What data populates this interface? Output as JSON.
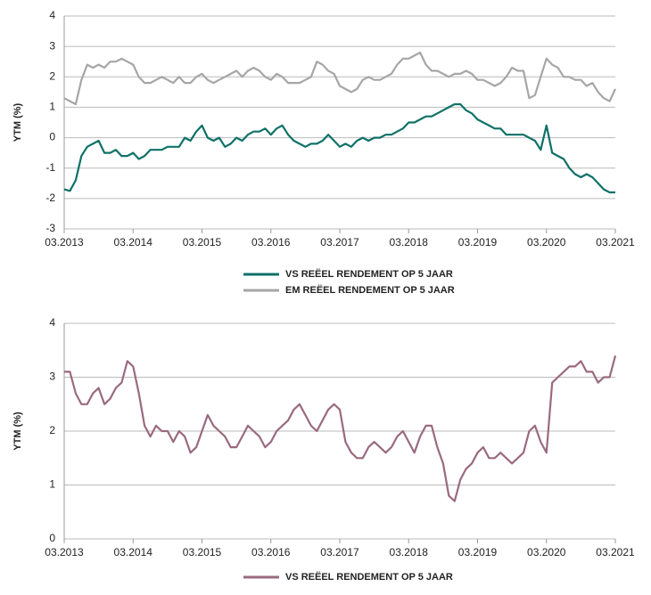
{
  "chart_data": [
    {
      "type": "line",
      "ylabel": "YTM (%)",
      "categories": [
        "03.2013",
        "04.2013",
        "05.2013",
        "06.2013",
        "07.2013",
        "08.2013",
        "09.2013",
        "10.2013",
        "11.2013",
        "12.2013",
        "01.2014",
        "02.2014",
        "03.2014",
        "04.2014",
        "05.2014",
        "06.2014",
        "07.2014",
        "08.2014",
        "09.2014",
        "10.2014",
        "11.2014",
        "12.2014",
        "01.2015",
        "02.2015",
        "03.2015",
        "04.2015",
        "05.2015",
        "06.2015",
        "07.2015",
        "08.2015",
        "09.2015",
        "10.2015",
        "11.2015",
        "12.2015",
        "01.2016",
        "02.2016",
        "03.2016",
        "04.2016",
        "05.2016",
        "06.2016",
        "07.2016",
        "08.2016",
        "09.2016",
        "10.2016",
        "11.2016",
        "12.2016",
        "01.2017",
        "02.2017",
        "03.2017",
        "04.2017",
        "05.2017",
        "06.2017",
        "07.2017",
        "08.2017",
        "09.2017",
        "10.2017",
        "11.2017",
        "12.2017",
        "01.2018",
        "02.2018",
        "03.2018",
        "04.2018",
        "05.2018",
        "06.2018",
        "07.2018",
        "08.2018",
        "09.2018",
        "10.2018",
        "11.2018",
        "12.2018",
        "01.2019",
        "02.2019",
        "03.2019",
        "04.2019",
        "05.2019",
        "06.2019",
        "07.2019",
        "08.2019",
        "09.2019",
        "10.2019",
        "11.2019",
        "12.2019",
        "01.2020",
        "02.2020",
        "03.2020",
        "04.2020",
        "05.2020",
        "06.2020",
        "07.2020",
        "08.2020",
        "09.2020",
        "10.2020",
        "11.2020",
        "12.2020",
        "01.2021",
        "02.2021",
        "03.2021"
      ],
      "series": [
        {
          "name": "VS REËEL RENDEMENT OP 5 JAAR",
          "color": "#0e7168",
          "values": [
            -1.7,
            -1.75,
            -1.4,
            -0.6,
            -0.3,
            -0.2,
            -0.1,
            -0.5,
            -0.5,
            -0.4,
            -0.6,
            -0.6,
            -0.5,
            -0.7,
            -0.6,
            -0.4,
            -0.4,
            -0.4,
            -0.3,
            -0.3,
            -0.3,
            0.0,
            -0.1,
            0.2,
            0.4,
            0.0,
            -0.1,
            0.0,
            -0.3,
            -0.2,
            0.0,
            -0.1,
            0.1,
            0.2,
            0.2,
            0.3,
            0.1,
            0.3,
            0.4,
            0.1,
            -0.1,
            -0.2,
            -0.3,
            -0.2,
            -0.2,
            -0.1,
            0.1,
            -0.1,
            -0.3,
            -0.2,
            -0.3,
            -0.1,
            0.0,
            -0.1,
            0.0,
            0.0,
            0.1,
            0.1,
            0.2,
            0.3,
            0.5,
            0.5,
            0.6,
            0.7,
            0.7,
            0.8,
            0.9,
            1.0,
            1.1,
            1.1,
            0.9,
            0.8,
            0.6,
            0.5,
            0.4,
            0.3,
            0.3,
            0.1,
            0.1,
            0.1,
            0.1,
            0.0,
            -0.1,
            -0.4,
            0.4,
            -0.5,
            -0.6,
            -0.7,
            -1.0,
            -1.2,
            -1.3,
            -1.2,
            -1.3,
            -1.5,
            -1.7,
            -1.8,
            -1.8
          ]
        },
        {
          "name": "EM REËEL RENDEMENT OP 5 JAAR",
          "color": "#a6a6a6",
          "values": [
            1.3,
            1.2,
            1.1,
            1.9,
            2.4,
            2.3,
            2.4,
            2.3,
            2.5,
            2.5,
            2.6,
            2.5,
            2.4,
            2.0,
            1.8,
            1.8,
            1.9,
            2.0,
            1.9,
            1.8,
            2.0,
            1.8,
            1.8,
            2.0,
            2.1,
            1.9,
            1.8,
            1.9,
            2.0,
            2.1,
            2.2,
            2.0,
            2.2,
            2.3,
            2.2,
            2.0,
            1.9,
            2.1,
            2.0,
            1.8,
            1.8,
            1.8,
            1.9,
            2.0,
            2.5,
            2.4,
            2.2,
            2.1,
            1.7,
            1.6,
            1.5,
            1.6,
            1.9,
            2.0,
            1.9,
            1.9,
            2.0,
            2.1,
            2.4,
            2.6,
            2.6,
            2.7,
            2.8,
            2.4,
            2.2,
            2.2,
            2.1,
            2.0,
            2.1,
            2.1,
            2.2,
            2.1,
            1.9,
            1.9,
            1.8,
            1.7,
            1.8,
            2.0,
            2.3,
            2.2,
            2.2,
            1.3,
            1.4,
            2.0,
            2.6,
            2.4,
            2.3,
            2.0,
            2.0,
            1.9,
            1.9,
            1.7,
            1.8,
            1.5,
            1.3,
            1.2,
            1.6
          ]
        }
      ],
      "ylim": [
        -3,
        4
      ],
      "yticks": [
        -3,
        -2,
        -1,
        0,
        1,
        2,
        3,
        4
      ],
      "grid": true
    },
    {
      "type": "line",
      "ylabel": "YTM (%)",
      "categories": [
        "03.2013",
        "04.2013",
        "05.2013",
        "06.2013",
        "07.2013",
        "08.2013",
        "09.2013",
        "10.2013",
        "11.2013",
        "12.2013",
        "01.2014",
        "02.2014",
        "03.2014",
        "04.2014",
        "05.2014",
        "06.2014",
        "07.2014",
        "08.2014",
        "09.2014",
        "10.2014",
        "11.2014",
        "12.2014",
        "01.2015",
        "02.2015",
        "03.2015",
        "04.2015",
        "05.2015",
        "06.2015",
        "07.2015",
        "08.2015",
        "09.2015",
        "10.2015",
        "11.2015",
        "12.2015",
        "01.2016",
        "02.2016",
        "03.2016",
        "04.2016",
        "05.2016",
        "06.2016",
        "07.2016",
        "08.2016",
        "09.2016",
        "10.2016",
        "11.2016",
        "12.2016",
        "01.2017",
        "02.2017",
        "03.2017",
        "04.2017",
        "05.2017",
        "06.2017",
        "07.2017",
        "08.2017",
        "09.2017",
        "10.2017",
        "11.2017",
        "12.2017",
        "01.2018",
        "02.2018",
        "03.2018",
        "04.2018",
        "05.2018",
        "06.2018",
        "07.2018",
        "08.2018",
        "09.2018",
        "10.2018",
        "11.2018",
        "12.2018",
        "01.2019",
        "02.2019",
        "03.2019",
        "04.2019",
        "05.2019",
        "06.2019",
        "07.2019",
        "08.2019",
        "09.2019",
        "10.2019",
        "11.2019",
        "12.2019",
        "01.2020",
        "02.2020",
        "03.2020",
        "04.2020",
        "05.2020",
        "06.2020",
        "07.2020",
        "08.2020",
        "09.2020",
        "10.2020",
        "11.2020",
        "12.2020",
        "01.2021",
        "02.2021",
        "03.2021"
      ],
      "series": [
        {
          "name": "VS REËEL RENDEMENT OP 5 JAAR",
          "color": "#9a6a7e",
          "values": [
            3.1,
            3.1,
            2.7,
            2.5,
            2.5,
            2.7,
            2.8,
            2.5,
            2.6,
            2.8,
            2.9,
            3.3,
            3.2,
            2.7,
            2.1,
            1.9,
            2.1,
            2.0,
            2.0,
            1.8,
            2.0,
            1.9,
            1.6,
            1.7,
            2.0,
            2.3,
            2.1,
            2.0,
            1.9,
            1.7,
            1.7,
            1.9,
            2.1,
            2.0,
            1.9,
            1.7,
            1.8,
            2.0,
            2.1,
            2.2,
            2.4,
            2.5,
            2.3,
            2.1,
            2.0,
            2.2,
            2.4,
            2.5,
            2.4,
            1.8,
            1.6,
            1.5,
            1.5,
            1.7,
            1.8,
            1.7,
            1.6,
            1.7,
            1.9,
            2.0,
            1.8,
            1.6,
            1.9,
            2.1,
            2.1,
            1.7,
            1.4,
            0.8,
            0.7,
            1.1,
            1.3,
            1.4,
            1.6,
            1.7,
            1.5,
            1.5,
            1.6,
            1.5,
            1.4,
            1.5,
            1.6,
            2.0,
            2.1,
            1.8,
            1.6,
            2.9,
            3.0,
            3.1,
            3.2,
            3.2,
            3.3,
            3.1,
            3.1,
            2.9,
            3.0,
            3.0,
            3.4
          ]
        }
      ],
      "ylim": [
        0,
        4
      ],
      "yticks": [
        0,
        1,
        2,
        3,
        4
      ],
      "grid": true
    }
  ]
}
